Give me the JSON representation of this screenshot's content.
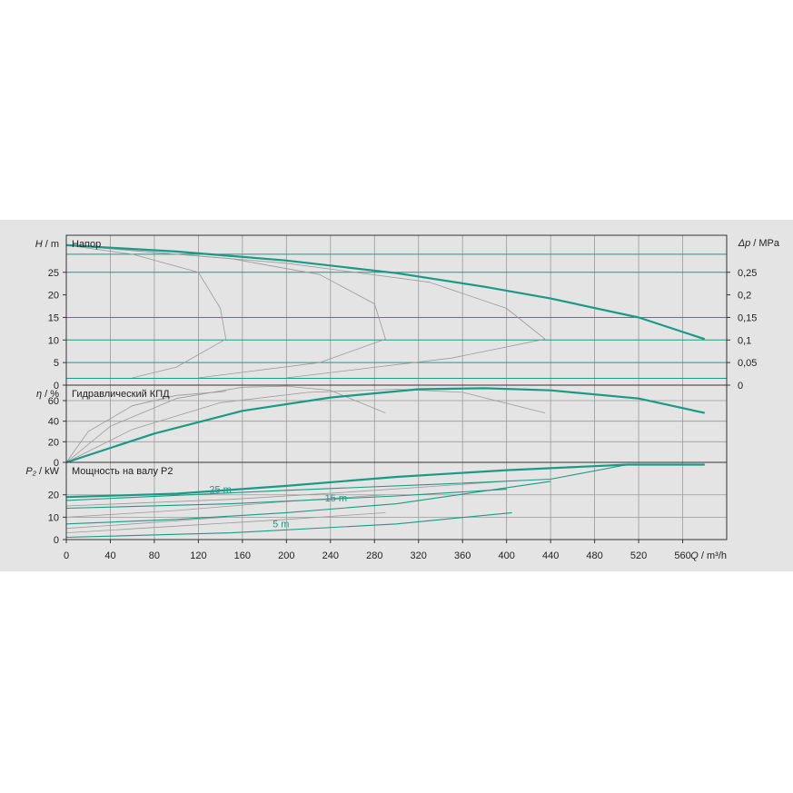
{
  "chart_data": [
    {
      "type": "line",
      "title": "Напор",
      "ylabel_left": {
        "symbol": "H",
        "unit": "/ m"
      },
      "ylabel_right": {
        "symbol": "Δp",
        "unit": "/ MPa"
      },
      "xlim": [
        0,
        600
      ],
      "ylim": [
        0,
        33.2
      ],
      "yticks": [
        "0",
        "5",
        "10",
        "15",
        "20",
        "25"
      ],
      "yticks_right": [
        "0",
        "0,05",
        "0,1",
        "0,15",
        "0,2",
        "0,25"
      ],
      "yticks_right_values": [
        0,
        5,
        10,
        15,
        20,
        25
      ],
      "hlines": [
        1.5,
        5,
        10,
        15,
        25,
        29
      ],
      "series": [
        {
          "role": "max",
          "points": [
            [
              0,
              31
            ],
            [
              100,
              29.6
            ],
            [
              200,
              27.6
            ],
            [
              300,
              24.8
            ],
            [
              380,
              21.8
            ],
            [
              440,
              19.2
            ],
            [
              520,
              15
            ],
            [
              580,
              10.2
            ]
          ]
        },
        {
          "role": "min",
          "points": [
            [
              0,
              1.6
            ],
            [
              150,
              1.6
            ],
            [
              250,
              1.8
            ],
            [
              330,
              3
            ],
            [
              400,
              4.6
            ],
            [
              460,
              6
            ],
            [
              520,
              8
            ],
            [
              580,
              10.2
            ]
          ]
        },
        {
          "role": "mid",
          "points": [
            [
              0,
              31
            ],
            [
              60,
              29
            ],
            [
              120,
              25
            ],
            [
              140,
              17
            ],
            [
              145,
              10.2
            ]
          ]
        },
        {
          "role": "mid",
          "points": [
            [
              0,
              31
            ],
            [
              150,
              28
            ],
            [
              230,
              24.5
            ],
            [
              280,
              18
            ],
            [
              290,
              10.2
            ]
          ]
        },
        {
          "role": "mid",
          "points": [
            [
              0,
              31
            ],
            [
              200,
              27
            ],
            [
              330,
              22.8
            ],
            [
              400,
              17
            ],
            [
              435,
              10.2
            ]
          ]
        },
        {
          "role": "mid",
          "points": [
            [
              60,
              1.6
            ],
            [
              100,
              4
            ],
            [
              145,
              10.2
            ]
          ]
        },
        {
          "role": "mid",
          "points": [
            [
              120,
              1.6
            ],
            [
              230,
              5
            ],
            [
              290,
              10.2
            ]
          ]
        },
        {
          "role": "mid",
          "points": [
            [
              200,
              1.6
            ],
            [
              350,
              6
            ],
            [
              435,
              10.2
            ]
          ]
        }
      ]
    },
    {
      "type": "line",
      "title": "Гидравлический КПД",
      "ylabel_left": {
        "symbol": "η",
        "unit": "/ %"
      },
      "xlim": [
        0,
        600
      ],
      "ylim": [
        0,
        75
      ],
      "yticks": [
        "0",
        "20",
        "40",
        "60"
      ],
      "series": [
        {
          "role": "max",
          "points": [
            [
              0,
              0
            ],
            [
              80,
              28
            ],
            [
              160,
              50
            ],
            [
              240,
              63
            ],
            [
              320,
              71
            ],
            [
              380,
              72
            ],
            [
              440,
              70
            ],
            [
              520,
              62
            ],
            [
              580,
              48
            ]
          ]
        },
        {
          "role": "mid",
          "points": [
            [
              0,
              0
            ],
            [
              40,
              35
            ],
            [
              100,
              62
            ],
            [
              160,
              73
            ],
            [
              200,
              74
            ],
            [
              240,
              70
            ],
            [
              290,
              48
            ]
          ]
        },
        {
          "role": "mid",
          "points": [
            [
              0,
              0
            ],
            [
              60,
              32
            ],
            [
              140,
              58
            ],
            [
              220,
              68
            ],
            [
              300,
              71
            ],
            [
              360,
              68
            ],
            [
              435,
              48
            ]
          ]
        },
        {
          "role": "mid",
          "points": [
            [
              0,
              0
            ],
            [
              20,
              30
            ],
            [
              60,
              55
            ],
            [
              100,
              65
            ],
            [
              145,
              69
            ]
          ]
        }
      ]
    },
    {
      "type": "line",
      "title": "Мощность на валу P2",
      "ylabel_left": {
        "symbol": "P₂",
        "unit": "/ kW"
      },
      "xlabel": {
        "symbol": "Q",
        "unit": "/ m³/h"
      },
      "xlim": [
        0,
        600
      ],
      "ylim": [
        0,
        34.5
      ],
      "xticks": [
        "0",
        "40",
        "80",
        "120",
        "160",
        "200",
        "240",
        "280",
        "320",
        "360",
        "400",
        "440",
        "480",
        "520",
        "560"
      ],
      "xtick_values": [
        0,
        40,
        80,
        120,
        160,
        200,
        240,
        280,
        320,
        360,
        400,
        440,
        480,
        520,
        560
      ],
      "yticks": [
        "0",
        "10",
        "20"
      ],
      "annotations": [
        {
          "text": "25 m",
          "x": 140,
          "y": 21
        },
        {
          "text": "15 m",
          "x": 245,
          "y": 17
        },
        {
          "text": "5 m",
          "x": 195,
          "y": 5.5
        }
      ],
      "series": [
        {
          "role": "max",
          "points": [
            [
              0,
              19
            ],
            [
              100,
              20.5
            ],
            [
              200,
              24
            ],
            [
              300,
              28
            ],
            [
              400,
              31
            ],
            [
              510,
              33.5
            ],
            [
              580,
              33.5
            ]
          ]
        },
        {
          "role": "teal",
          "points": [
            [
              0,
              17.5
            ],
            [
              200,
              22
            ],
            [
              350,
              25
            ],
            [
              440,
              27
            ],
            [
              510,
              33.5
            ]
          ]
        },
        {
          "role": "teal",
          "points": [
            [
              0,
              14
            ],
            [
              150,
              16
            ],
            [
              300,
              19.5
            ],
            [
              400,
              22.5
            ]
          ]
        },
        {
          "role": "teal",
          "points": [
            [
              0,
              7
            ],
            [
              100,
              9
            ],
            [
              200,
              12
            ],
            [
              300,
              16
            ],
            [
              440,
              26
            ]
          ]
        },
        {
          "role": "teal",
          "points": [
            [
              0,
              1
            ],
            [
              150,
              3
            ],
            [
              300,
              7
            ],
            [
              405,
              12
            ]
          ]
        },
        {
          "role": "mid",
          "points": [
            [
              0,
              15
            ],
            [
              150,
              18
            ],
            [
              250,
              21
            ],
            [
              400,
              26
            ]
          ]
        },
        {
          "role": "mid",
          "points": [
            [
              0,
              10
            ],
            [
              100,
              13
            ],
            [
              200,
              17
            ],
            [
              290,
              20
            ]
          ]
        },
        {
          "role": "mid",
          "points": [
            [
              0,
              5
            ],
            [
              60,
              7
            ],
            [
              145,
              10
            ]
          ]
        },
        {
          "role": "mid",
          "points": [
            [
              0,
              3
            ],
            [
              100,
              6
            ],
            [
              200,
              9
            ],
            [
              290,
              12
            ]
          ]
        }
      ]
    }
  ],
  "colors": {
    "max": "#1a9a86",
    "teal": "#1a9a86",
    "mid": "#9a9a9a",
    "panel": "#e4e4e4",
    "plot": "#e4e4e4"
  }
}
